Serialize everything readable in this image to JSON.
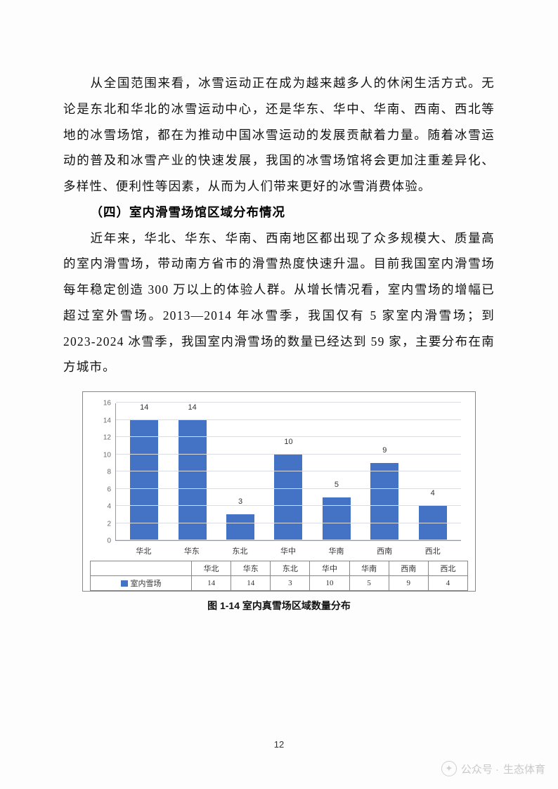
{
  "paragraphs": {
    "p1": "从全国范围来看，冰雪运动正在成为越来越多人的休闲生活方式。无论是东北和华北的冰雪运动中心，还是华东、华中、华南、西南、西北等地的冰雪场馆，都在为推动中国冰雪运动的发展贡献着力量。随着冰雪运动的普及和冰雪产业的快速发展，我国的冰雪场馆将会更加注重差异化、多样性、便利性等因素，从而为人们带来更好的冰雪消费体验。",
    "section": "（四）室内滑雪场馆区域分布情况",
    "p2": "近年来，华北、华东、华南、西南地区都出现了众多规模大、质量高的室内滑雪场，带动南方省市的滑雪热度快速升温。目前我国室内滑雪场每年稳定创造 300 万以上的体验人群。从增长情况看，室内雪场的增幅已超过室外雪场。2013—2014 年冰雪季，我国仅有 5 家室内滑雪场；到 2023-2024 冰雪季，我国室内滑雪场的数量已经达到 59 家，主要分布在南方城市。"
  },
  "chart": {
    "type": "bar",
    "categories": [
      "华北",
      "华东",
      "东北",
      "华中",
      "华南",
      "西南",
      "西北"
    ],
    "values": [
      14,
      14,
      3,
      10,
      5,
      9,
      4
    ],
    "series_label": "室内雪场",
    "ylim": [
      0,
      16
    ],
    "ytick_step": 2,
    "bar_color": "#4472c4",
    "grid_color": "#d9dce2",
    "border_color": "#888888",
    "value_fontsize": 11,
    "tick_fontsize": 11,
    "background_color": "#ffffff"
  },
  "caption": "图 1-14 室内真雪场区域数量分布",
  "page_number": "12",
  "watermark": {
    "prefix": "公众号 · ",
    "name": "生态体育"
  }
}
